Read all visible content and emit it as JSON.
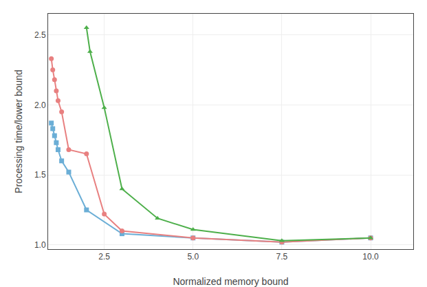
{
  "chart_data": {
    "type": "line",
    "xlabel": "Normalized memory bound",
    "ylabel": "Processing time/lower bound",
    "series": [
      {
        "color": "#6baed6",
        "marker": "square",
        "x": [
          1.01,
          1.05,
          1.1,
          1.15,
          1.2,
          1.3,
          1.5,
          2.0,
          3.0,
          5.0,
          7.5,
          10.0
        ],
        "values": [
          1.87,
          1.83,
          1.78,
          1.73,
          1.68,
          1.6,
          1.52,
          1.25,
          1.08,
          1.05,
          1.02,
          1.05
        ]
      },
      {
        "color": "#e88080",
        "marker": "circle",
        "x": [
          1.01,
          1.05,
          1.1,
          1.15,
          1.2,
          1.3,
          1.5,
          2.0,
          2.5,
          3.0,
          5.0,
          7.5,
          10.0
        ],
        "values": [
          2.33,
          2.25,
          2.18,
          2.1,
          2.03,
          1.95,
          1.68,
          1.65,
          1.22,
          1.1,
          1.05,
          1.02,
          1.05
        ]
      },
      {
        "color": "#4daf4a",
        "marker": "triangle-up",
        "x": [
          2.0,
          2.1,
          2.5,
          3.0,
          4.0,
          5.0,
          7.5,
          10.0
        ],
        "values": [
          2.55,
          2.38,
          1.98,
          1.4,
          1.19,
          1.11,
          1.03,
          1.05
        ]
      }
    ],
    "xlim": [
      0.92,
      11.2
    ],
    "ylim": [
      0.97,
      2.65
    ],
    "xticks": [
      2.5,
      {
        "value": 5.0,
        "label": "5.0"
      },
      7.5,
      {
        "value": 10.0,
        "label": "10.0"
      }
    ],
    "yticks": [
      {
        "value": 1.0,
        "label": "1.0"
      },
      1.5,
      {
        "value": 2.0,
        "label": "2.0"
      },
      2.5
    ],
    "grid": true
  }
}
